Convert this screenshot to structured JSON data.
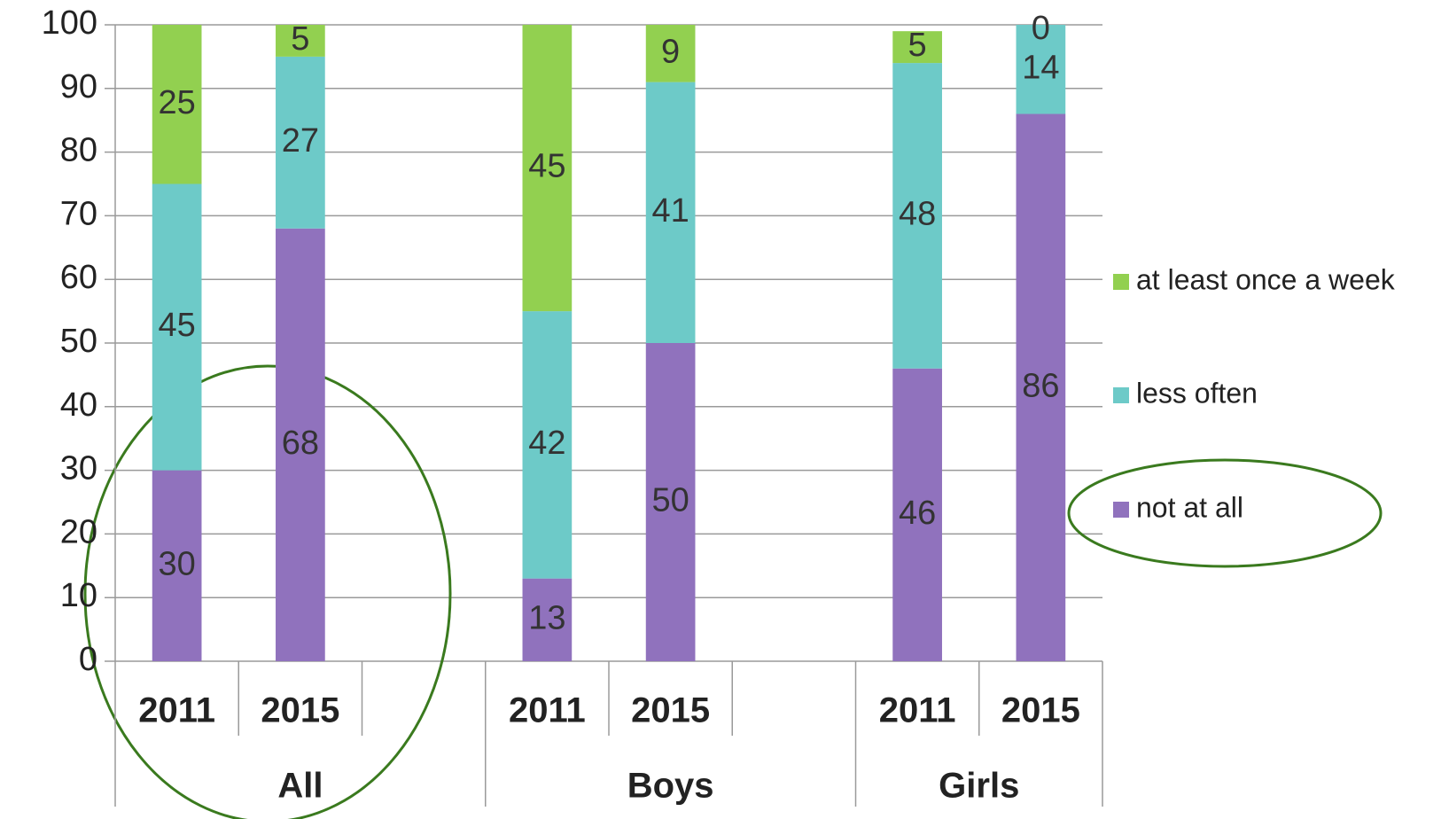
{
  "chart_data": {
    "type": "stacked-bar",
    "groups": [
      {
        "name": "All",
        "categories": [
          "2011",
          "2015",
          null
        ]
      },
      {
        "name": "Boys",
        "categories": [
          "2011",
          "2015",
          null
        ]
      },
      {
        "name": "Girls",
        "categories": [
          "2011",
          "2015"
        ]
      }
    ],
    "series": [
      {
        "name": "not at all",
        "color": "#9072bd",
        "values": [
          30,
          68,
          null,
          13,
          50,
          null,
          46,
          86
        ]
      },
      {
        "name": "less often",
        "color": "#6dcac8",
        "values": [
          45,
          27,
          null,
          42,
          41,
          null,
          48,
          14
        ]
      },
      {
        "name": "at least once a week",
        "color": "#92d050",
        "values": [
          25,
          5,
          null,
          45,
          9,
          null,
          5,
          0
        ]
      }
    ],
    "ylim": [
      0,
      100
    ],
    "yticks": [
      0,
      10,
      20,
      30,
      40,
      50,
      60,
      70,
      80,
      90,
      100
    ],
    "grid": true,
    "legend": "right"
  }
}
